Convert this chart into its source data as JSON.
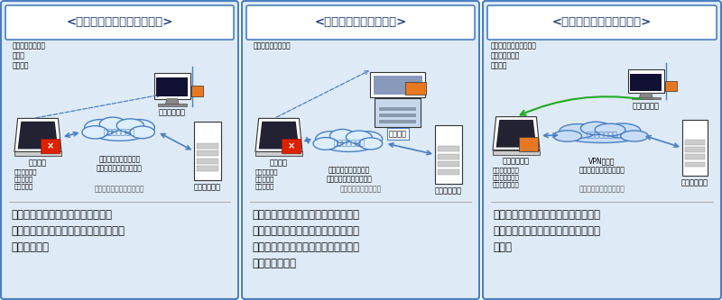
{
  "bg_color": "#ffffff",
  "panel_bg": "#deeaf5",
  "panel_border": "#4a7fc1",
  "title_bg": "#ffffff",
  "title_color": "#1a3a6e",
  "text_color": "#1a1a1a",
  "arrow_color": "#4a7fc1",
  "cloud_color": "#4a7fc1",
  "panels": [
    {
      "title": "<リモートデスクトップ方式>",
      "diagram_label": "リモートデスクトップ方式",
      "top_note": "オフィスに設置の\n端末を\n遠隔操作",
      "left_label": "自宅端末",
      "left_sublabel": "電子データは\n自宅端末に\n保持しない",
      "right_upper_label": "オフィス端末",
      "right_label": "社内システム",
      "cloud_label": "インターネット",
      "middle_note": "インターネット経由で\n社内システムにアクセス",
      "desc": "テレワーク端末から職場の端末へリ\nモートデスクトップし、職場と同じ環境\nで仕事が可能",
      "left_has_x": true,
      "left_has_orange": false,
      "right_upper_type": "monitor_orange"
    },
    {
      "title": "<仮想デスクトップ方式>",
      "diagram_label": "仮想デスクトップ方式",
      "top_note": "仮想端末を遠隔操作",
      "left_label": "自宅端末",
      "left_sublabel": "電子データは\n自宅端末に\n保持しない",
      "right_upper_label": "仮想端末",
      "right_label": "社内システム",
      "cloud_label": "インターネット",
      "middle_note": "インターネット経由で\n社内システムにアクセス",
      "desc": "テレワーク用仮想端末にインターネッ\nト回線を通じてアクセスし、仮想デス\nクトップを遠隔操作して社内システム\nへアクセスする",
      "left_has_x": true,
      "left_has_orange": false,
      "right_upper_type": "big_server"
    },
    {
      "title": "<職場端末の持ち帰り方式>",
      "diagram_label": "職場端末の持ち帰り方式",
      "top_note": "従業員によるテレワーク\n端末の物理的な\n持ち出し",
      "left_label": "オフィス端末",
      "left_sublabel": "オフィスで利用\nしているものと\n同じ端末を操作",
      "right_upper_label": "オフィス端末",
      "right_label": "社内システム",
      "cloud_label": "インターネット",
      "middle_note": "VPN経由で\n社内システムにアクセス",
      "desc": "職場の端末を持ち帰り、インターネッ\nト回線を通じて社内システムにアクセ\nスする",
      "left_has_x": false,
      "left_has_orange": true,
      "right_upper_type": "monitor_orange"
    }
  ]
}
